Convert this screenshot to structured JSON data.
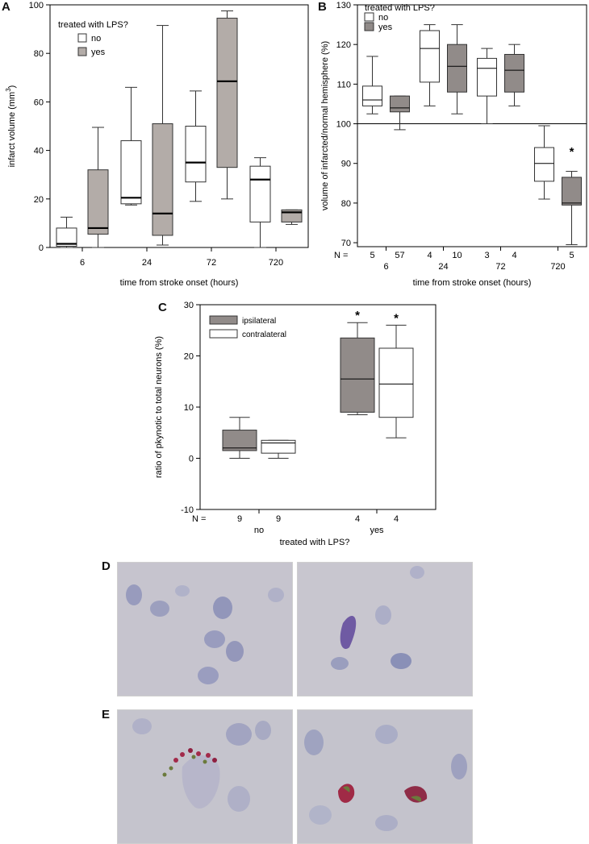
{
  "panel_letters": {
    "a": "A",
    "b": "B",
    "c": "C",
    "d": "D",
    "e": "E"
  },
  "colors": {
    "grey_fill": "#b3aca8",
    "dark_grey_fill": "#918b89",
    "white_fill": "#ffffff",
    "tissue_bg": "#c4c2cd",
    "nucleus": "#8a8fb6",
    "pyknotic": "#7b5fa6",
    "tunel_red": "#a22a4a",
    "tunel_green": "#6b7a3c"
  },
  "chart_data": [
    {
      "id": "A",
      "type": "boxplot",
      "ylabel": "infarct volume (mm",
      "ylabel_sup": "3",
      "ylabel_tail": ")",
      "xlabel": "time from stroke onset (hours)",
      "categories": [
        "6",
        "24",
        "72",
        "720"
      ],
      "yticks": [
        "0",
        "20",
        "40",
        "60",
        "80",
        "100"
      ],
      "ylim": [
        0,
        100
      ],
      "legend": {
        "title": "treated with LPS?",
        "entries": [
          "no",
          "yes"
        ],
        "position": "top-left"
      },
      "series": [
        {
          "name": "no",
          "boxes": [
            {
              "min": 0,
              "q1": 0.5,
              "median": 1.5,
              "q3": 8,
              "max": 12.5
            },
            {
              "min": 17.5,
              "q1": 18,
              "median": 20.5,
              "q3": 44,
              "max": 66
            },
            {
              "min": 19,
              "q1": 27,
              "median": 35,
              "q3": 50,
              "max": 64.5
            },
            {
              "min": 0,
              "q1": 10.5,
              "median": 28,
              "q3": 33.5,
              "max": 37
            }
          ]
        },
        {
          "name": "yes",
          "boxes": [
            {
              "min": 0,
              "q1": 5.5,
              "median": 8,
              "q3": 32,
              "max": 49.5
            },
            {
              "min": 1,
              "q1": 5,
              "median": 14,
              "q3": 51,
              "max": 91.5
            },
            {
              "min": 20,
              "q1": 33,
              "median": 68.5,
              "q3": 94.5,
              "max": 97.5
            },
            {
              "min": 9.5,
              "q1": 10.5,
              "median": 14.5,
              "q3": 15.5,
              "max": 15.5
            }
          ]
        }
      ]
    },
    {
      "id": "B",
      "type": "boxplot",
      "ylabel": "volume of infarcted/normal hemisphere (%)",
      "xlabel": "time from stroke onset  (hours)",
      "categories": [
        "6",
        "24",
        "72",
        "720"
      ],
      "yticks": [
        "70",
        "80",
        "90",
        "100",
        "110",
        "120",
        "130"
      ],
      "ylim": [
        69,
        130
      ],
      "reference_line": 100,
      "legend": {
        "title": "treated with LPS?",
        "entries": [
          "no",
          "yes"
        ],
        "position": "top-left"
      },
      "n_label": "N =",
      "n_values": [
        [
          "5",
          "57"
        ],
        [
          "4",
          "10"
        ],
        [
          "3",
          "4"
        ],
        [
          "",
          "5"
        ]
      ],
      "series": [
        {
          "name": "no",
          "boxes": [
            {
              "min": 102.5,
              "q1": 104.5,
              "median": 106,
              "q3": 109.5,
              "max": 117
            },
            {
              "min": 104.5,
              "q1": 110.5,
              "median": 119,
              "q3": 123.5,
              "max": 125
            },
            {
              "min": 100,
              "q1": 107,
              "median": 114,
              "q3": 116.5,
              "max": 119
            },
            {
              "min": 81,
              "q1": 85.5,
              "median": 90,
              "q3": 94,
              "max": 99.5
            }
          ]
        },
        {
          "name": "yes",
          "boxes": [
            {
              "min": 98.5,
              "q1": 103,
              "median": 104,
              "q3": 107,
              "max": 107
            },
            {
              "min": 102.5,
              "q1": 108,
              "median": 114.5,
              "q3": 120,
              "max": 125
            },
            {
              "min": 104.5,
              "q1": 108,
              "median": 113.5,
              "q3": 117.5,
              "max": 120
            },
            {
              "min": 69.5,
              "q1": 79.5,
              "median": 80,
              "q3": 86.5,
              "max": 88
            }
          ]
        }
      ],
      "annotations": [
        {
          "text": "*",
          "category": "720",
          "series": "yes",
          "y": 92
        }
      ]
    },
    {
      "id": "C",
      "type": "boxplot",
      "ylabel": "ratio of pkynotic to total neurons (%)",
      "xlabel": "treated with LPS?",
      "categories": [
        "no",
        "yes"
      ],
      "yticks": [
        "-10",
        "0",
        "10",
        "20",
        "30"
      ],
      "ylim": [
        -10,
        30
      ],
      "legend": {
        "entries": [
          "ipsilateral",
          "contralateral"
        ],
        "position": "top-left"
      },
      "n_label": "N =",
      "n_values": [
        [
          "9",
          "9"
        ],
        [
          "4",
          "4"
        ]
      ],
      "series": [
        {
          "name": "ipsilateral",
          "boxes": [
            {
              "min": 0,
              "q1": 1.5,
              "median": 2,
              "q3": 5.5,
              "max": 8
            },
            {
              "min": 8.5,
              "q1": 9,
              "median": 15.5,
              "q3": 23.5,
              "max": 26.5
            }
          ]
        },
        {
          "name": "contralateral",
          "boxes": [
            {
              "min": 0,
              "q1": 1,
              "median": 3,
              "q3": 3.5,
              "max": 3.5
            },
            {
              "min": 4,
              "q1": 8,
              "median": 14.5,
              "q3": 21.5,
              "max": 26
            }
          ]
        }
      ],
      "annotations": [
        {
          "text": "*",
          "category": "yes",
          "series": "ipsilateral"
        },
        {
          "text": "*",
          "category": "yes",
          "series": "contralateral"
        }
      ]
    }
  ]
}
